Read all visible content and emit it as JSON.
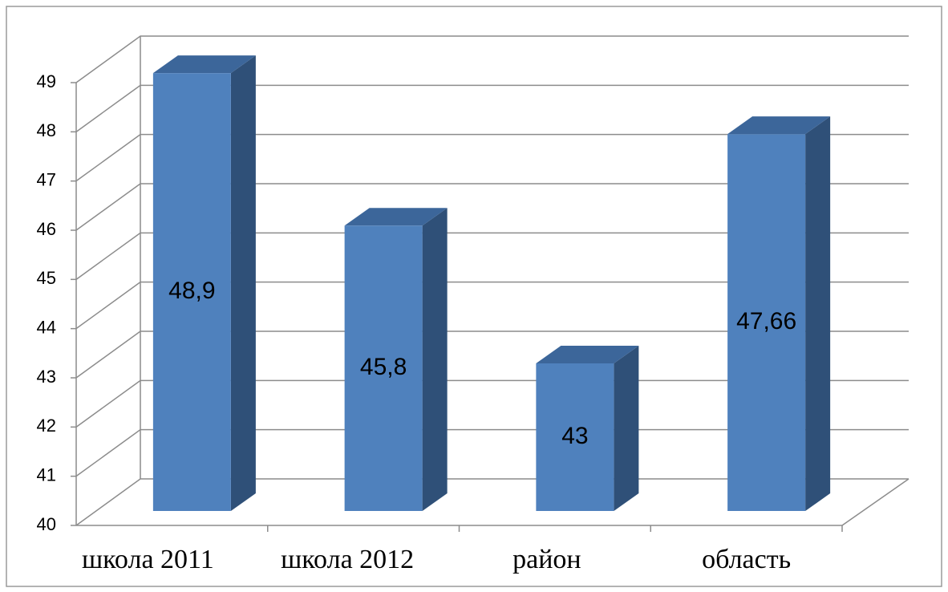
{
  "chart_data": {
    "type": "bar3d",
    "categories": [
      "школа 2011",
      "школа 2012",
      "район",
      "область"
    ],
    "values": [
      48.9,
      45.8,
      43,
      47.66
    ],
    "value_labels": [
      "48,9",
      "45,8",
      "43",
      "47,66"
    ],
    "color": "#4f81bd",
    "ylim": [
      40,
      49
    ],
    "yticks": [
      40,
      41,
      42,
      43,
      44,
      45,
      46,
      47,
      48,
      49
    ],
    "grid": true
  }
}
